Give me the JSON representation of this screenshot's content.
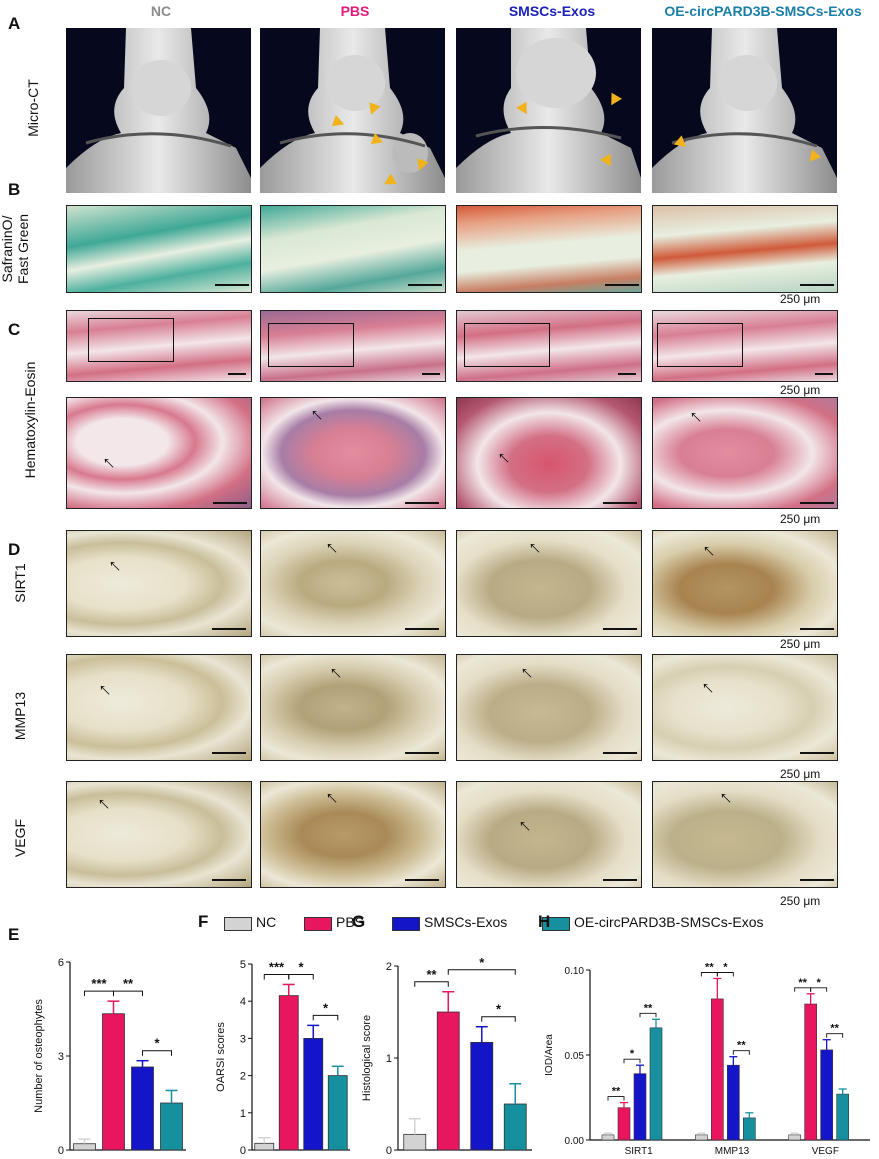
{
  "panel_letters": {
    "A": "A",
    "B": "B",
    "C": "C",
    "D": "D",
    "E": "E",
    "F": "F",
    "G": "G",
    "H": "H"
  },
  "groups": [
    {
      "name": "NC",
      "color": "#8c8c8c"
    },
    {
      "name": "PBS",
      "color": "#e5197a"
    },
    {
      "name": "SMSCs-Exos",
      "color": "#1a1fb8"
    },
    {
      "name": "OE-circPARD3B-SMSCs-Exos",
      "color": "#1a7fa8"
    }
  ],
  "row_labels": {
    "microct": "Micro-CT",
    "safranin_line1": "SafraninO/",
    "safranin_line2": "Fast Green",
    "he": "Hematoxylin-Eosin",
    "sirt1": "SIRT1",
    "mmp13": "MMP13",
    "vegf": "VEGF"
  },
  "scale_label": "250 μm",
  "legend": [
    {
      "name": "NC",
      "color": "#d3d3d3"
    },
    {
      "name": "PBS",
      "color": "#e8155f"
    },
    {
      "name": "SMSCs-Exos",
      "color": "#1414c8"
    },
    {
      "name": "OE-circPARD3B-SMSCs-Exos",
      "color": "#168f9f"
    }
  ],
  "chart_data": [
    {
      "type": "bar",
      "panel": "E",
      "categories": [
        "NC",
        "PBS",
        "SMSCs-Exos",
        "OE-circPARD3B-SMSCs-Exos"
      ],
      "values": [
        0.2,
        4.35,
        2.65,
        1.5
      ],
      "errors": [
        0.15,
        0.4,
        0.2,
        0.4
      ],
      "ylabel": "Number of osteophytes",
      "ylim": [
        0,
        6
      ],
      "yticks": [
        "0",
        "3",
        "6"
      ],
      "sig": [
        {
          "a": 0,
          "b": 1,
          "label": "***"
        },
        {
          "a": 1,
          "b": 2,
          "label": "**"
        },
        {
          "a": 2,
          "b": 3,
          "label": "*"
        }
      ]
    },
    {
      "type": "bar",
      "panel": "F",
      "categories": [
        "NC",
        "PBS",
        "SMSCs-Exos",
        "OE-circPARD3B-SMSCs-Exos"
      ],
      "values": [
        0.18,
        4.15,
        3.0,
        2.0
      ],
      "errors": [
        0.15,
        0.3,
        0.35,
        0.25
      ],
      "ylabel": "OARSI scores",
      "ylim": [
        0,
        5
      ],
      "yticks": [
        "0",
        "1",
        "2",
        "3",
        "4",
        "5"
      ],
      "sig": [
        {
          "a": 0,
          "b": 1,
          "label": "***"
        },
        {
          "a": 1,
          "b": 2,
          "label": "*"
        },
        {
          "a": 2,
          "b": 3,
          "label": "*"
        }
      ]
    },
    {
      "type": "bar",
      "panel": "G",
      "categories": [
        "NC",
        "PBS",
        "SMSCs-Exos",
        "OE-circPARD3B-SMSCs-Exos"
      ],
      "values": [
        0.17,
        1.5,
        1.17,
        0.5
      ],
      "errors": [
        0.17,
        0.22,
        0.17,
        0.22
      ],
      "ylabel": "Histological score",
      "ylim": [
        0,
        2
      ],
      "yticks": [
        "0",
        "1",
        "2"
      ],
      "sig": [
        {
          "a": 0,
          "b": 1,
          "label": "**"
        },
        {
          "a": 1,
          "b": 3,
          "label": "*"
        },
        {
          "a": 2,
          "b": 3,
          "label": "*"
        }
      ]
    },
    {
      "type": "grouped-bar",
      "panel": "H",
      "categories": [
        "SIRT1",
        "MMP13",
        "VEGF"
      ],
      "series": [
        {
          "name": "NC",
          "values": [
            0.003,
            0.003,
            0.003
          ],
          "errors": [
            0.001,
            0.001,
            0.001
          ]
        },
        {
          "name": "PBS",
          "values": [
            0.019,
            0.083,
            0.08
          ],
          "errors": [
            0.003,
            0.012,
            0.006
          ]
        },
        {
          "name": "SMSCs-Exos",
          "values": [
            0.039,
            0.044,
            0.053
          ],
          "errors": [
            0.005,
            0.005,
            0.006
          ]
        },
        {
          "name": "OE-circPARD3B-SMSCs-Exos",
          "values": [
            0.066,
            0.013,
            0.027
          ],
          "errors": [
            0.005,
            0.003,
            0.003
          ]
        }
      ],
      "ylabel": "IOD/Area",
      "ylim": [
        0,
        0.1
      ],
      "yticks": [
        "0.00",
        "0.05",
        "0.10"
      ],
      "sig": [
        {
          "cat": 0,
          "a": 0,
          "b": 1,
          "label": "**"
        },
        {
          "cat": 0,
          "a": 1,
          "b": 2,
          "label": "*"
        },
        {
          "cat": 0,
          "a": 2,
          "b": 3,
          "label": "**"
        },
        {
          "cat": 1,
          "a": 0,
          "b": 1,
          "label": "**"
        },
        {
          "cat": 1,
          "a": 1,
          "b": 2,
          "label": "*"
        },
        {
          "cat": 1,
          "a": 2,
          "b": 3,
          "label": "**"
        },
        {
          "cat": 2,
          "a": 0,
          "b": 1,
          "label": "**"
        },
        {
          "cat": 2,
          "a": 1,
          "b": 2,
          "label": "*"
        },
        {
          "cat": 2,
          "a": 2,
          "b": 3,
          "label": "**"
        }
      ]
    }
  ]
}
